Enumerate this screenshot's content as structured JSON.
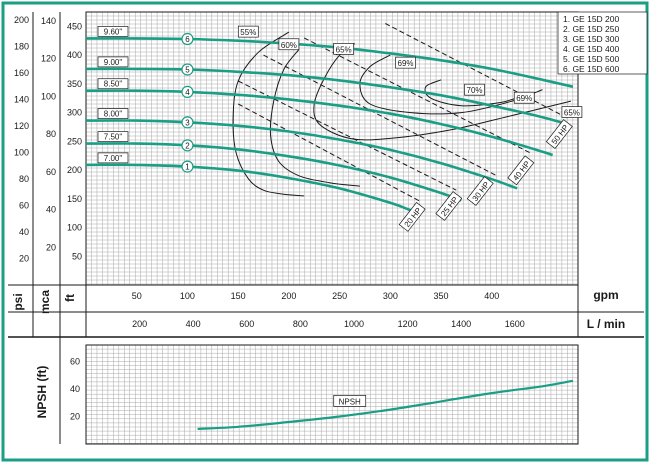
{
  "chart_data": [
    {
      "type": "line",
      "subtype": "pump-performance-curves",
      "x_unit": "gpm",
      "x_unit_alt": "L / min",
      "y_unit_ft": "ft",
      "y_unit_mca": "mca",
      "y_unit_psi": "psi",
      "xlim_gpm": [
        0,
        485
      ],
      "ylim_ft": [
        0,
        475
      ],
      "x_ticks_gpm": [
        "50",
        "100",
        "150",
        "200",
        "250",
        "300",
        "350",
        "400"
      ],
      "x_ticks_lmin": [
        "200",
        "400",
        "600",
        "800",
        "1000",
        "1200",
        "1400",
        "1600"
      ],
      "y_ticks_ft": [
        "50",
        "100",
        "150",
        "200",
        "250",
        "300",
        "350",
        "400",
        "450"
      ],
      "y_ticks_mca": [
        "20",
        "40",
        "60",
        "80",
        "100",
        "120",
        "140"
      ],
      "y_ticks_psi": [
        "20",
        "40",
        "60",
        "80",
        "100",
        "120",
        "140",
        "160",
        "180",
        "200"
      ],
      "grid": true,
      "legend_position": "top-right",
      "legend": [
        "1. GE 15D 200",
        "2. GE 15D 250",
        "3. GE 15D 300",
        "4. GE 15D 400",
        "5. GE 15D 500",
        "6. GE 15D 600"
      ],
      "series": [
        {
          "name": "1",
          "impeller": "7.00\"",
          "color": "#1a9e85",
          "x": [
            0,
            50,
            100,
            150,
            200,
            250,
            300,
            320
          ],
          "y": [
            209,
            209,
            206,
            199,
            186,
            168,
            143,
            130
          ]
        },
        {
          "name": "2",
          "impeller": "7.50\"",
          "color": "#1a9e85",
          "x": [
            0,
            50,
            100,
            150,
            200,
            250,
            300,
            350,
            370
          ],
          "y": [
            246,
            246,
            243,
            236,
            224,
            208,
            187,
            160,
            147
          ]
        },
        {
          "name": "3",
          "impeller": "8.00\"",
          "color": "#1a9e85",
          "x": [
            0,
            50,
            100,
            150,
            200,
            250,
            300,
            350,
            400,
            425
          ],
          "y": [
            286,
            286,
            283,
            277,
            267,
            253,
            235,
            212,
            184,
            168
          ]
        },
        {
          "name": "4",
          "impeller": "8.50\"",
          "color": "#1a9e85",
          "x": [
            0,
            50,
            100,
            150,
            200,
            250,
            300,
            350,
            400,
            450,
            460
          ],
          "y": [
            338,
            338,
            336,
            331,
            323,
            312,
            298,
            280,
            258,
            232,
            226
          ]
        },
        {
          "name": "5",
          "impeller": "9.00\"",
          "color": "#1a9e85",
          "x": [
            0,
            50,
            100,
            150,
            200,
            250,
            300,
            350,
            400,
            450,
            470
          ],
          "y": [
            376,
            376,
            375,
            371,
            365,
            356,
            344,
            330,
            312,
            292,
            282
          ]
        },
        {
          "name": "6",
          "impeller": "9.60\"",
          "color": "#1a9e85",
          "x": [
            0,
            50,
            100,
            150,
            200,
            250,
            300,
            350,
            400,
            450,
            480
          ],
          "y": [
            429,
            429,
            428,
            425,
            420,
            413,
            403,
            391,
            376,
            357,
            345
          ]
        }
      ],
      "efficiency_curves": [
        {
          "label": "55%",
          "x": [
            200,
            170,
            150,
            145,
            148,
            160,
            175,
            195,
            215
          ],
          "y": [
            440,
            405,
            355,
            290,
            230,
            185,
            165,
            158,
            155
          ]
        },
        {
          "label": "60%",
          "x": [
            210,
            195,
            185,
            182,
            190,
            210,
            240,
            270
          ],
          "y": [
            410,
            375,
            320,
            260,
            215,
            190,
            178,
            172
          ]
        },
        {
          "label": "65%",
          "x": [
            265,
            250,
            235,
            225,
            230,
            260,
            300,
            360,
            420,
            478
          ],
          "y": [
            420,
            400,
            360,
            315,
            280,
            255,
            255,
            270,
            295,
            320
          ]
        },
        {
          "label": "69%",
          "x": [
            300,
            280,
            270,
            280,
            320,
            370,
            420,
            450
          ],
          "y": [
            400,
            380,
            350,
            315,
            300,
            300,
            320,
            340
          ]
        },
        {
          "label": "70%",
          "x": [
            350,
            335,
            340,
            370,
            410,
            430
          ],
          "y": [
            357,
            345,
            325,
            312,
            318,
            330
          ]
        }
      ],
      "efficiency_labels": [
        {
          "text": "55%",
          "x": 160,
          "y": 440
        },
        {
          "text": "60%",
          "x": 200,
          "y": 418
        },
        {
          "text": "65%",
          "x": 254,
          "y": 410
        },
        {
          "text": "69%",
          "x": 315,
          "y": 386
        },
        {
          "text": "70%",
          "x": 383,
          "y": 339
        },
        {
          "text": "69%",
          "x": 432,
          "y": 325
        },
        {
          "text": "65%",
          "x": 479,
          "y": 300
        }
      ],
      "power_lines": [
        {
          "label": "20 HP",
          "x": [
            150,
            330
          ],
          "y": [
            315,
            145
          ]
        },
        {
          "label": "25 HP",
          "x": [
            150,
            365
          ],
          "y": [
            355,
            165
          ]
        },
        {
          "label": "30 HP",
          "x": [
            175,
            405
          ],
          "y": [
            400,
            190
          ]
        },
        {
          "label": "40 HP",
          "x": [
            215,
            440
          ],
          "y": [
            430,
            228
          ]
        },
        {
          "label": "50 HP",
          "x": [
            295,
            475
          ],
          "y": [
            455,
            290
          ]
        }
      ],
      "power_labels": [
        {
          "text": "20 HP",
          "x": 322,
          "y": 118
        },
        {
          "text": "25 HP",
          "x": 358,
          "y": 137
        },
        {
          "text": "30 HP",
          "x": 389,
          "y": 163
        },
        {
          "text": "40 HP",
          "x": 429,
          "y": 199
        },
        {
          "text": "50 HP",
          "x": 467,
          "y": 262
        }
      ]
    },
    {
      "type": "line",
      "subtype": "npsh-curve",
      "ylabel": "NPSH (ft)",
      "xlim_gpm": [
        0,
        485
      ],
      "ylim": [
        0,
        72
      ],
      "y_ticks": [
        "20",
        "40",
        "60"
      ],
      "grid": true,
      "series": [
        {
          "name": "NPSH",
          "color": "#1a9e85",
          "x": [
            110,
            150,
            200,
            250,
            300,
            350,
            400,
            450,
            480
          ],
          "y": [
            11,
            12.5,
            16,
            20,
            25,
            31,
            37,
            42,
            46
          ]
        }
      ],
      "label_position": {
        "x": 258,
        "y": 31
      }
    }
  ]
}
